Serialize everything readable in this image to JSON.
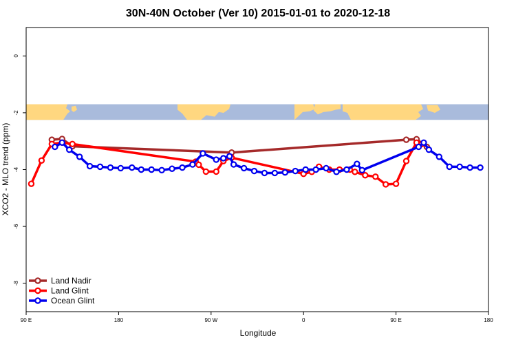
{
  "chart_data": {
    "type": "line",
    "title": "30N-40N October (Ver 10)   2015-01-01 to 2020-12-18",
    "xlabel": "Longitude",
    "ylabel": "XCO2 - MLO trend (ppm)",
    "xlim": [
      90,
      540
    ],
    "ylim": [
      -9,
      1
    ],
    "x_ticks": [
      {
        "value": 90,
        "label": "90 E"
      },
      {
        "value": 180,
        "label": "180"
      },
      {
        "value": 270,
        "label": "90 W"
      },
      {
        "value": 360,
        "label": "0"
      },
      {
        "value": 450,
        "label": "90 E"
      },
      {
        "value": 540,
        "label": "180"
      }
    ],
    "y_ticks": [
      {
        "value": 0,
        "label": "0"
      },
      {
        "value": -2,
        "label": "-2"
      },
      {
        "value": -4,
        "label": "-4"
      },
      {
        "value": -6,
        "label": "-6"
      },
      {
        "value": -8,
        "label": "-8"
      }
    ],
    "map_strip": {
      "y_top": -1.7,
      "y_bottom": -2.25,
      "land_color": "#ffd780",
      "ocean_color": "#a9bbdc"
    },
    "legend_position": "bottom-left",
    "series": [
      {
        "name": "Land Nadir",
        "color": "#a52a2a",
        "x": [
          115,
          125,
          135,
          290,
          460,
          470,
          480
        ],
        "y": [
          -2.95,
          -2.92,
          -3.18,
          -3.4,
          -2.95,
          -2.93,
          -3.2
        ]
      },
      {
        "name": "Land Glint",
        "color": "#ff0000",
        "x": [
          95,
          105,
          115,
          125,
          135,
          255,
          258,
          265,
          275,
          282,
          290,
          360,
          368,
          375,
          385,
          395,
          405,
          410,
          420,
          430,
          440,
          450,
          460,
          470,
          475
        ],
        "y": [
          -4.5,
          -3.68,
          -3.1,
          -3.05,
          -3.1,
          -3.72,
          -3.83,
          -4.07,
          -4.07,
          -3.7,
          -3.58,
          -4.15,
          -4.08,
          -3.9,
          -4.0,
          -4.0,
          -4.0,
          -4.08,
          -4.2,
          -4.25,
          -4.52,
          -4.5,
          -3.7,
          -3.05,
          -3.1
        ]
      },
      {
        "name": "Ocean Glint",
        "color": "#0000ee",
        "x": [
          118,
          125,
          132,
          142,
          152,
          162,
          172,
          182,
          193,
          202,
          212,
          222,
          232,
          242,
          252,
          262,
          275,
          282,
          288,
          292,
          302,
          312,
          322,
          332,
          342,
          352,
          362,
          372,
          382,
          392,
          402,
          412,
          417,
          472,
          477,
          482,
          492,
          502,
          512,
          522,
          532
        ],
        "y": [
          -3.2,
          -3.05,
          -3.3,
          -3.55,
          -3.88,
          -3.9,
          -3.93,
          -3.95,
          -3.93,
          -4.0,
          -4.0,
          -4.02,
          -3.97,
          -3.93,
          -3.82,
          -3.43,
          -3.65,
          -3.6,
          -3.53,
          -3.82,
          -3.95,
          -4.05,
          -4.12,
          -4.12,
          -4.1,
          -4.05,
          -4.0,
          -4.0,
          -3.95,
          -4.08,
          -4.0,
          -3.8,
          -4.02,
          -3.2,
          -3.05,
          -3.3,
          -3.55,
          -3.9,
          -3.9,
          -3.93,
          -3.93
        ]
      }
    ]
  }
}
